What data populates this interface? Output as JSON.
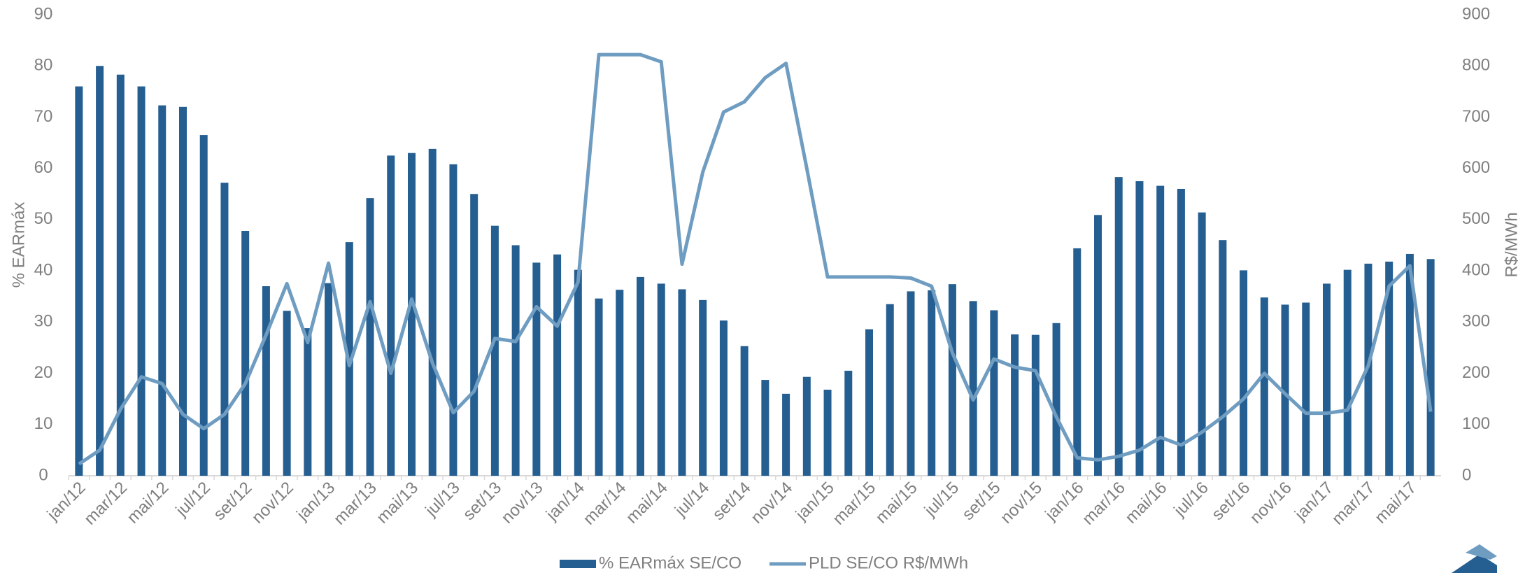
{
  "chart_data": {
    "type": "bar_line",
    "categories": [
      "jan/12",
      null,
      "mar/12",
      null,
      "mai/12",
      null,
      "jul/12",
      null,
      "set/12",
      null,
      "nov/12",
      null,
      "jan/13",
      null,
      "mar/13",
      null,
      "mai/13",
      null,
      "jul/13",
      null,
      "set/13",
      null,
      "nov/13",
      null,
      "jan/14",
      null,
      "mar/14",
      null,
      "mai/14",
      null,
      "jul/14",
      null,
      "set/14",
      null,
      "nov/14",
      null,
      "jan/15",
      null,
      "mar/15",
      null,
      "mai/15",
      null,
      "jul/15",
      null,
      "set/15",
      null,
      "nov/15",
      null,
      "jan/16",
      null,
      "mar/16",
      null,
      "mai/16",
      null,
      "jul/16",
      null,
      "set/16",
      null,
      "nov/16",
      null,
      "jan/17",
      null,
      "mar/17",
      null,
      "mai/17",
      null
    ],
    "series": [
      {
        "name": "% EARmáx SE/CO",
        "color": "#255e91",
        "kind": "bar",
        "values": [
          76,
          80,
          78.3,
          76,
          72.3,
          72,
          66.5,
          57.2,
          47.8,
          37,
          32.2,
          28.8,
          37.6,
          45.6,
          54.2,
          62.5,
          63,
          63.8,
          60.8,
          55,
          48.8,
          45,
          41.6,
          43.2,
          40.2,
          34.6,
          36.3,
          38.8,
          37.5,
          36.4,
          34.3,
          30.3,
          25.3,
          18.7,
          16,
          19.3,
          16.8,
          20.5,
          28.6,
          33.5,
          36,
          36.2,
          37.4,
          34.1,
          32.3,
          27.6,
          27.5,
          29.8,
          44.4,
          50.9,
          58.3,
          57.5,
          56.6,
          56,
          51.4,
          46,
          40.1,
          34.8,
          33.4,
          33.8,
          37.5,
          40.2,
          41.4,
          41.8,
          43.3,
          42.3
        ]
      },
      {
        "name": "PLD SE/CO R$/MWh",
        "color": "#6f9cc1",
        "kind": "line",
        "axis": "y2",
        "values": [
          23,
          50,
          130,
          193,
          180,
          120,
          92,
          120,
          180,
          275,
          375,
          260,
          415,
          215,
          340,
          200,
          345,
          220,
          123,
          165,
          268,
          262,
          330,
          292,
          378,
          822,
          822,
          822,
          808,
          413,
          593,
          710,
          730,
          777,
          805,
          600,
          388,
          388,
          388,
          388,
          386,
          370,
          240,
          148,
          228,
          212,
          205,
          115,
          35,
          31,
          38,
          50,
          75,
          60,
          85,
          115,
          150,
          200,
          160,
          122,
          122,
          128,
          215,
          370,
          410,
          125
        ]
      }
    ],
    "y_label": "% EARmáx",
    "y2_label": "R$/MWh",
    "ylim": [
      0,
      90
    ],
    "yticks": [
      0,
      10,
      20,
      30,
      40,
      50,
      60,
      70,
      80,
      90
    ],
    "y2lim": [
      0,
      900
    ],
    "y2ticks": [
      0,
      100,
      200,
      300,
      400,
      500,
      600,
      700,
      800,
      900
    ]
  }
}
